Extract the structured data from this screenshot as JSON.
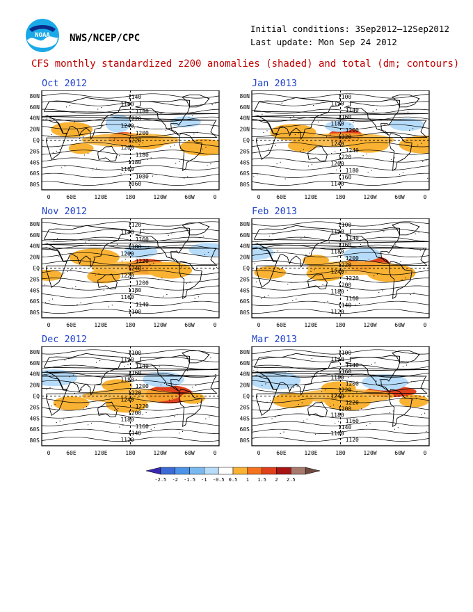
{
  "header": {
    "agency": "NWS/NCEP/CPC",
    "initial_conditions": "Initial conditions: 3Sep2012–12Sep2012",
    "last_update": "Last update: Mon Sep 24 2012",
    "subtitle": "CFS monthly standardized z200 anomalies (shaded) and total (dm; contours)"
  },
  "lon_labels": [
    "0",
    "60E",
    "120E",
    "180",
    "120W",
    "60W",
    "0"
  ],
  "lat_labels": [
    "80N",
    "60N",
    "40N",
    "20N",
    "EQ",
    "20S",
    "40S",
    "60S",
    "80S"
  ],
  "panels": [
    {
      "title": "Oct 2012",
      "contour_labels": [
        "1140",
        "1160",
        "1180",
        "1220",
        "1240",
        "1200",
        "1220",
        "1200",
        "1180",
        "1180",
        "1160",
        "1080",
        "1060"
      ]
    },
    {
      "title": "Jan 2013",
      "contour_labels": [
        "1100",
        "1120",
        "1140",
        "1160",
        "1180",
        "1200",
        "1220",
        "1240",
        "1240",
        "1220",
        "1200",
        "1180",
        "1160",
        "1140"
      ]
    },
    {
      "title": "Nov 2012",
      "contour_labels": [
        "1120",
        "1140",
        "1160",
        "1180",
        "1200",
        "1220",
        "1240",
        "1220",
        "1200",
        "1180",
        "1160",
        "1140",
        "1100"
      ]
    },
    {
      "title": "Feb 2013",
      "contour_labels": [
        "1100",
        "1120",
        "1140",
        "1160",
        "1180",
        "1200",
        "1220",
        "1240",
        "1220",
        "1200",
        "1180",
        "1160",
        "1140",
        "1120"
      ]
    },
    {
      "title": "Dec 2012",
      "contour_labels": [
        "1100",
        "1120",
        "1140",
        "1160",
        "1180",
        "1200",
        "1220",
        "1240",
        "1220",
        "1200",
        "1180",
        "1160",
        "1140",
        "1120"
      ]
    },
    {
      "title": "Mar 2013",
      "contour_labels": [
        "1100",
        "1120",
        "1140",
        "1160",
        "1180",
        "1200",
        "1220",
        "1240",
        "1220",
        "1200",
        "1180",
        "1160",
        "1140",
        "1100",
        "1120"
      ]
    }
  ],
  "colorbar": {
    "ticks": [
      "-2.5",
      "-2",
      "-1.5",
      "-1",
      "-0.5",
      "0.5",
      "1",
      "1.5",
      "2",
      "2.5"
    ],
    "colors": [
      "#3a28b0",
      "#3c6ad6",
      "#4d93e8",
      "#79b9f0",
      "#b6dcfa",
      "#ffffff",
      "#f9b233",
      "#f5721e",
      "#e0401c",
      "#a81414",
      "#a87a6e",
      "#6e4a40"
    ]
  }
}
